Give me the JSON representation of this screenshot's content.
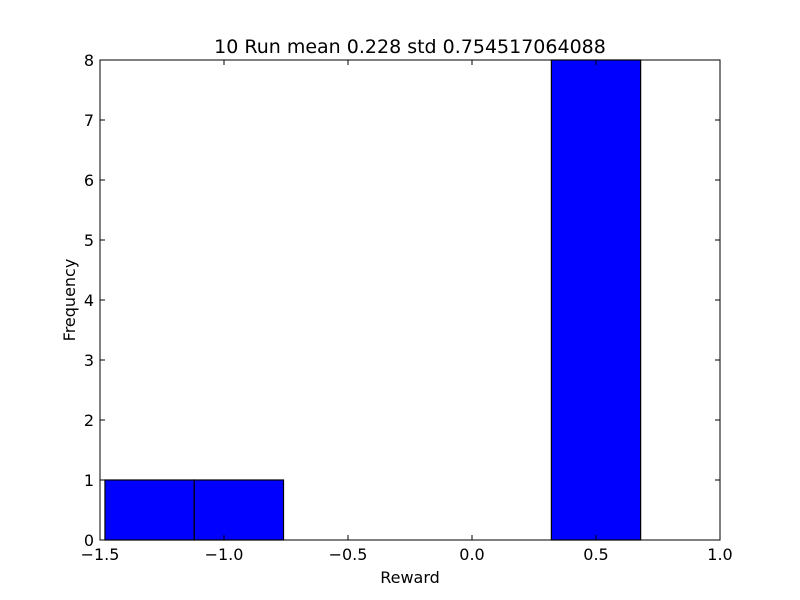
{
  "chart_data": {
    "type": "bar",
    "title": "10 Run mean 0.228 std 0.754517064088",
    "xlabel": "Reward",
    "ylabel": "Frequency",
    "xlim": [
      -1.5,
      1.0
    ],
    "ylim": [
      0,
      8
    ],
    "x_ticks": [
      -1.5,
      -1.0,
      -0.5,
      0.0,
      0.5,
      1.0
    ],
    "x_tick_labels": [
      "−1.5",
      "−1.0",
      "−0.5",
      "0.0",
      "0.5",
      "1.0"
    ],
    "y_ticks": [
      0,
      1,
      2,
      3,
      4,
      5,
      6,
      7,
      8
    ],
    "y_tick_labels": [
      "0",
      "1",
      "2",
      "3",
      "4",
      "5",
      "6",
      "7",
      "8"
    ],
    "bins": [
      {
        "x0": -1.48,
        "x1": -1.12,
        "count": 1
      },
      {
        "x0": -1.12,
        "x1": -0.76,
        "count": 1
      },
      {
        "x0": 0.32,
        "x1": 0.68,
        "count": 8
      }
    ],
    "grid": false,
    "bar_color": "#0000ff",
    "edge_color": "#000000"
  }
}
